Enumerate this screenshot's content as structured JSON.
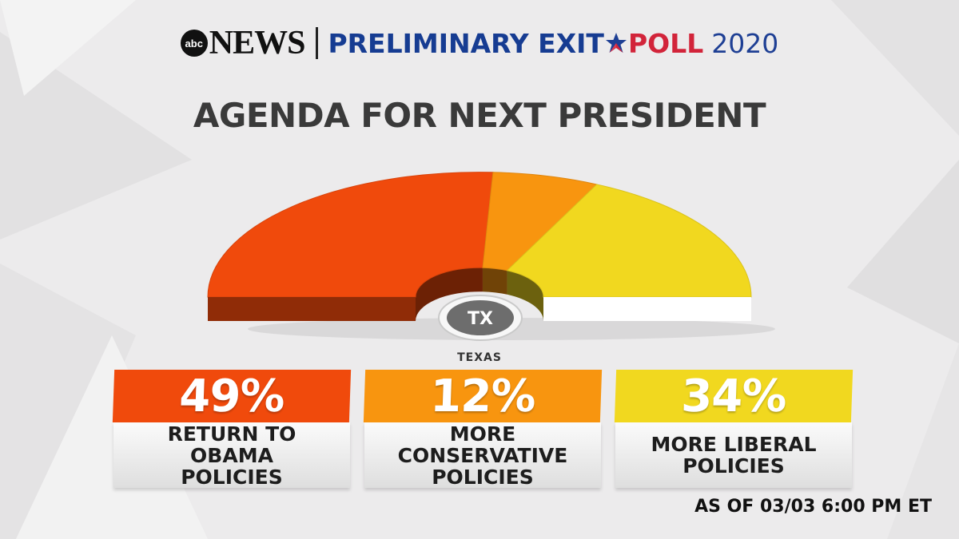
{
  "header": {
    "network_logo": "abc",
    "network_name": "NEWS",
    "poll_title_left": "PRELIMINARY EXIT",
    "poll_title_right": "POLL",
    "poll_year": "2020",
    "star_icon": "star-icon"
  },
  "chart_data": {
    "type": "pie",
    "title": "AGENDA FOR NEXT PRESIDENT",
    "categories": [
      "RETURN TO OBAMA POLICIES",
      "MORE CONSERVATIVE POLICIES",
      "MORE LIBERAL POLICIES"
    ],
    "values": [
      49,
      12,
      34
    ],
    "value_labels": [
      "49%",
      "12%",
      "34%"
    ],
    "colors": [
      "#f04a0c",
      "#f8950f",
      "#f1d81f"
    ]
  },
  "cards": [
    {
      "pct": "49%",
      "label_lines": [
        "RETURN TO",
        "OBAMA",
        "POLICIES"
      ],
      "color": "#f04a0c"
    },
    {
      "pct": "12%",
      "label_lines": [
        "MORE",
        "CONSERVATIVE",
        "POLICIES"
      ],
      "color": "#f8950f"
    },
    {
      "pct": "34%",
      "label_lines": [
        "MORE LIBERAL",
        "POLICIES"
      ],
      "color": "#f1d81f"
    }
  ],
  "state": {
    "abbr": "TX",
    "name": "TEXAS"
  },
  "timestamp": "AS OF 03/03 6:00 PM ET"
}
